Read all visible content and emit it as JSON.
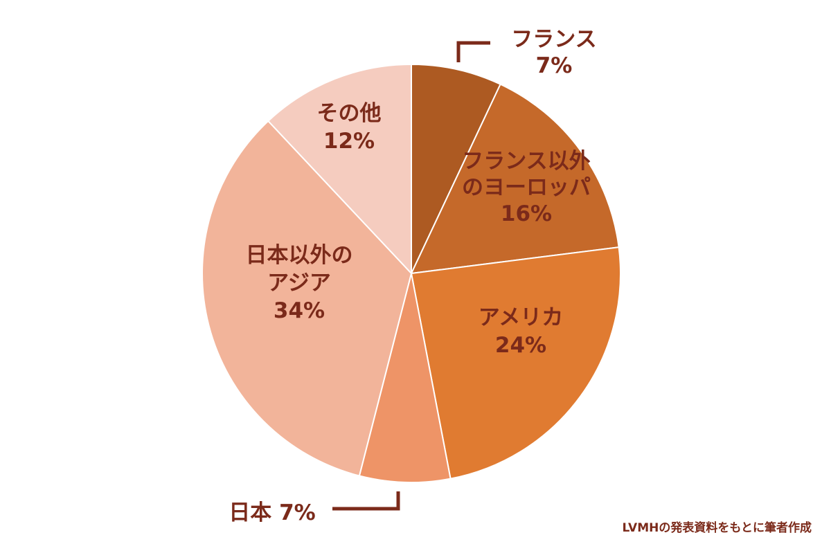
{
  "chart_data": {
    "type": "pie",
    "title": "",
    "slices": [
      {
        "label_lines": [
          "フランス",
          "7%"
        ],
        "value": 7,
        "color": "#ad5a22"
      },
      {
        "label_lines": [
          "フランス以外",
          "のヨーロッパ",
          "16%"
        ],
        "value": 16,
        "color": "#c5692a"
      },
      {
        "label_lines": [
          "アメリカ",
          "24%"
        ],
        "value": 24,
        "color": "#e07b31"
      },
      {
        "label_lines": [
          "日本 7%"
        ],
        "value": 7,
        "color": "#ee9467"
      },
      {
        "label_lines": [
          "日本以外の",
          "アジア",
          "34%"
        ],
        "value": 34,
        "color": "#f2b49a"
      },
      {
        "label_lines": [
          "その他",
          "12%"
        ],
        "value": 12,
        "color": "#f5ccbf"
      }
    ],
    "leader_color": "#7b2a1a",
    "label_color": "#7b2a1a"
  },
  "source_note": "LVMHの発表資料をもとに筆者作成"
}
